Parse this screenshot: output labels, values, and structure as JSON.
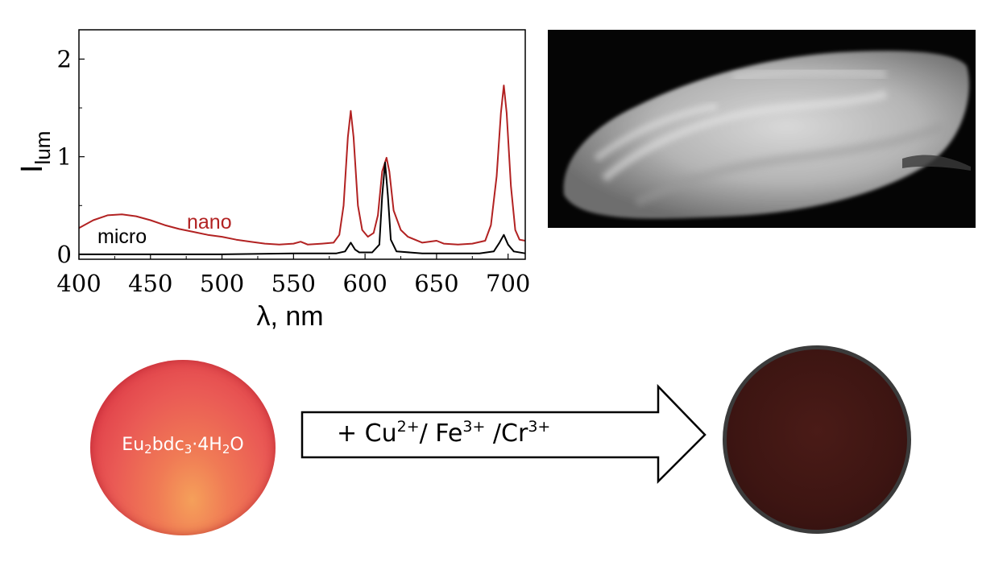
{
  "chart_data": {
    "type": "line",
    "xlabel": "λ, nm",
    "ylabel": "I",
    "ylabel_sub": "lum",
    "xlim": [
      400,
      712
    ],
    "ylim": [
      -0.05,
      2.3
    ],
    "xticks": [
      "400",
      "450",
      "500",
      "550",
      "600",
      "650",
      "700"
    ],
    "yticks": [
      "0",
      "1",
      "2"
    ],
    "grid": false,
    "series": [
      {
        "name": "nano",
        "color": "#b22222",
        "points": [
          [
            400,
            0.27
          ],
          [
            410,
            0.35
          ],
          [
            420,
            0.4
          ],
          [
            430,
            0.41
          ],
          [
            440,
            0.39
          ],
          [
            450,
            0.35
          ],
          [
            460,
            0.3
          ],
          [
            470,
            0.26
          ],
          [
            480,
            0.23
          ],
          [
            490,
            0.2
          ],
          [
            500,
            0.18
          ],
          [
            510,
            0.15
          ],
          [
            520,
            0.13
          ],
          [
            530,
            0.11
          ],
          [
            540,
            0.1
          ],
          [
            550,
            0.11
          ],
          [
            555,
            0.13
          ],
          [
            560,
            0.1
          ],
          [
            570,
            0.11
          ],
          [
            578,
            0.12
          ],
          [
            582,
            0.2
          ],
          [
            585,
            0.5
          ],
          [
            588,
            1.2
          ],
          [
            590,
            1.47
          ],
          [
            592,
            1.2
          ],
          [
            595,
            0.5
          ],
          [
            598,
            0.25
          ],
          [
            602,
            0.18
          ],
          [
            606,
            0.22
          ],
          [
            609,
            0.4
          ],
          [
            612,
            0.85
          ],
          [
            615,
            0.99
          ],
          [
            617,
            0.85
          ],
          [
            620,
            0.45
          ],
          [
            625,
            0.25
          ],
          [
            630,
            0.18
          ],
          [
            640,
            0.12
          ],
          [
            650,
            0.14
          ],
          [
            655,
            0.11
          ],
          [
            665,
            0.1
          ],
          [
            675,
            0.11
          ],
          [
            684,
            0.14
          ],
          [
            688,
            0.3
          ],
          [
            692,
            0.8
          ],
          [
            695,
            1.45
          ],
          [
            697,
            1.73
          ],
          [
            699,
            1.45
          ],
          [
            702,
            0.7
          ],
          [
            705,
            0.25
          ],
          [
            708,
            0.15
          ],
          [
            712,
            0.14
          ]
        ]
      },
      {
        "name": "micro",
        "color": "#000000",
        "points": [
          [
            400,
            0.0
          ],
          [
            500,
            0.0
          ],
          [
            550,
            0.01
          ],
          [
            580,
            0.01
          ],
          [
            586,
            0.03
          ],
          [
            590,
            0.12
          ],
          [
            593,
            0.05
          ],
          [
            596,
            0.02
          ],
          [
            605,
            0.02
          ],
          [
            610,
            0.1
          ],
          [
            612,
            0.6
          ],
          [
            614,
            0.94
          ],
          [
            616,
            0.6
          ],
          [
            618,
            0.15
          ],
          [
            622,
            0.03
          ],
          [
            640,
            0.01
          ],
          [
            680,
            0.01
          ],
          [
            690,
            0.03
          ],
          [
            694,
            0.12
          ],
          [
            697,
            0.2
          ],
          [
            700,
            0.1
          ],
          [
            704,
            0.03
          ],
          [
            712,
            0.01
          ]
        ]
      }
    ],
    "annotations": [
      {
        "text": "nano",
        "color": "#b22222"
      },
      {
        "text": "micro",
        "color": "#000000"
      }
    ]
  },
  "diagram": {
    "sample_label": {
      "pre": "Eu",
      "s1": "2",
      "mid": "bdc",
      "s2": "3",
      "post": "·4H",
      "s3": "2",
      "end": "O"
    },
    "reagent_label": {
      "a": "+ Cu",
      "a_sup": "2+",
      "b": "/ Fe",
      "b_sup": "3+",
      "c": " /Cr",
      "c_sup": "3+"
    }
  },
  "colors": {
    "red_disc": "#e0404a",
    "dark_disc": "#3d1512",
    "sem_background": "#050505"
  }
}
